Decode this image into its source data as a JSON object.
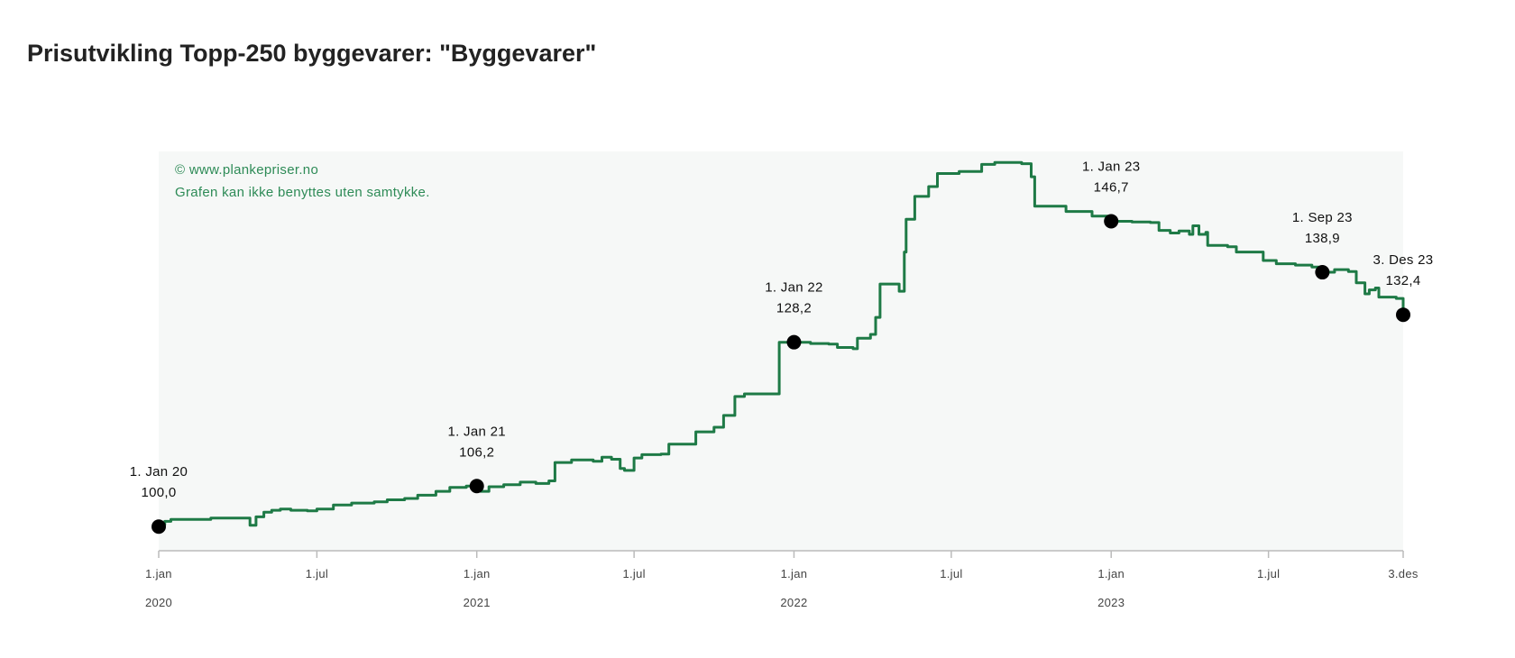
{
  "title": "Prisutvikling Topp-250 byggevarer: \"Byggevarer\"",
  "copyright": {
    "line1": "© www.plankepriser.no",
    "line2": "Grafen kan ikke benyttes uten samtykke."
  },
  "colors": {
    "line": "#1e7a46",
    "plot_background": "#f6f8f7",
    "marker": "#000000",
    "copyright_text": "#2e8b57",
    "axis": "#bbbbbb"
  },
  "chart_data": {
    "type": "line",
    "x_type": "date",
    "xlim": [
      "2020-01-01",
      "2023-12-03"
    ],
    "ylim": [
      97,
      156
    ],
    "grid": false,
    "legend": "none",
    "series": [
      {
        "points": [
          [
            "2020-01-01",
            100.0
          ],
          [
            "2020-01-04",
            100.3
          ],
          [
            "2020-01-08",
            100.8
          ],
          [
            "2020-01-15",
            101.1
          ],
          [
            "2020-02-01",
            101.1
          ],
          [
            "2020-03-01",
            101.3
          ],
          [
            "2020-04-10",
            101.3
          ],
          [
            "2020-04-15",
            100.2
          ],
          [
            "2020-04-22",
            101.5
          ],
          [
            "2020-05-01",
            102.2
          ],
          [
            "2020-05-10",
            102.5
          ],
          [
            "2020-05-20",
            102.7
          ],
          [
            "2020-06-01",
            102.5
          ],
          [
            "2020-06-20",
            102.4
          ],
          [
            "2020-07-01",
            102.7
          ],
          [
            "2020-07-20",
            103.3
          ],
          [
            "2020-08-10",
            103.6
          ],
          [
            "2020-09-05",
            103.8
          ],
          [
            "2020-09-20",
            104.1
          ],
          [
            "2020-10-10",
            104.3
          ],
          [
            "2020-10-25",
            104.8
          ],
          [
            "2020-11-15",
            105.4
          ],
          [
            "2020-12-01",
            106.0
          ],
          [
            "2020-12-20",
            106.2
          ],
          [
            "2021-01-01",
            106.2
          ],
          [
            "2021-01-05",
            105.4
          ],
          [
            "2021-01-15",
            106.1
          ],
          [
            "2021-02-01",
            106.4
          ],
          [
            "2021-02-20",
            106.8
          ],
          [
            "2021-03-10",
            106.6
          ],
          [
            "2021-03-25",
            107.0
          ],
          [
            "2021-04-01",
            109.8
          ],
          [
            "2021-04-20",
            110.2
          ],
          [
            "2021-05-15",
            110.0
          ],
          [
            "2021-05-25",
            110.6
          ],
          [
            "2021-06-05",
            110.3
          ],
          [
            "2021-06-15",
            108.9
          ],
          [
            "2021-06-20",
            108.6
          ],
          [
            "2021-07-01",
            110.5
          ],
          [
            "2021-07-10",
            111.0
          ],
          [
            "2021-08-01",
            111.1
          ],
          [
            "2021-08-10",
            112.6
          ],
          [
            "2021-09-01",
            112.6
          ],
          [
            "2021-09-10",
            114.5
          ],
          [
            "2021-10-01",
            115.2
          ],
          [
            "2021-10-12",
            117.0
          ],
          [
            "2021-10-25",
            119.9
          ],
          [
            "2021-11-05",
            120.3
          ],
          [
            "2021-12-15",
            128.2
          ],
          [
            "2022-01-01",
            128.2
          ],
          [
            "2022-01-20",
            128.0
          ],
          [
            "2022-02-10",
            127.9
          ],
          [
            "2022-02-20",
            127.4
          ],
          [
            "2022-03-10",
            127.2
          ],
          [
            "2022-03-15",
            128.8
          ],
          [
            "2022-03-30",
            129.4
          ],
          [
            "2022-04-05",
            132.0
          ],
          [
            "2022-04-10",
            137.1
          ],
          [
            "2022-04-25",
            137.1
          ],
          [
            "2022-05-02",
            136.0
          ],
          [
            "2022-05-08",
            142.0
          ],
          [
            "2022-05-10",
            147.0
          ],
          [
            "2022-05-20",
            150.5
          ],
          [
            "2022-06-05",
            152.0
          ],
          [
            "2022-06-15",
            154.0
          ],
          [
            "2022-07-10",
            154.3
          ],
          [
            "2022-08-05",
            155.4
          ],
          [
            "2022-08-20",
            155.7
          ],
          [
            "2022-09-20",
            155.5
          ],
          [
            "2022-10-01",
            153.5
          ],
          [
            "2022-10-05",
            149.0
          ],
          [
            "2022-10-10",
            149.0
          ],
          [
            "2022-11-10",
            148.2
          ],
          [
            "2022-12-10",
            147.5
          ],
          [
            "2023-01-01",
            146.7
          ],
          [
            "2023-01-25",
            146.6
          ],
          [
            "2023-02-15",
            146.5
          ],
          [
            "2023-02-25",
            145.3
          ],
          [
            "2023-03-10",
            144.9
          ],
          [
            "2023-03-20",
            145.2
          ],
          [
            "2023-04-01",
            144.7
          ],
          [
            "2023-04-05",
            146.0
          ],
          [
            "2023-04-12",
            144.7
          ],
          [
            "2023-04-20",
            145.0
          ],
          [
            "2023-04-22",
            143.0
          ],
          [
            "2023-05-15",
            142.8
          ],
          [
            "2023-05-25",
            142.0
          ],
          [
            "2023-06-25",
            140.7
          ],
          [
            "2023-07-10",
            140.2
          ],
          [
            "2023-08-01",
            140.0
          ],
          [
            "2023-08-20",
            139.7
          ],
          [
            "2023-09-01",
            138.9
          ],
          [
            "2023-09-15",
            139.3
          ],
          [
            "2023-10-01",
            139.0
          ],
          [
            "2023-10-10",
            137.3
          ],
          [
            "2023-10-20",
            135.6
          ],
          [
            "2023-10-25",
            136.2
          ],
          [
            "2023-11-01",
            136.5
          ],
          [
            "2023-11-05",
            135.1
          ],
          [
            "2023-11-25",
            134.9
          ],
          [
            "2023-12-03",
            132.4
          ]
        ]
      }
    ],
    "annotations": [
      {
        "x": "2020-01-01",
        "y": 100.0,
        "date_label": "1. Jan 20",
        "value_label": "100,0"
      },
      {
        "x": "2021-01-01",
        "y": 106.2,
        "date_label": "1. Jan 21",
        "value_label": "106,2"
      },
      {
        "x": "2022-01-01",
        "y": 128.2,
        "date_label": "1. Jan 22",
        "value_label": "128,2"
      },
      {
        "x": "2023-01-01",
        "y": 146.7,
        "date_label": "1. Jan 23",
        "value_label": "146,7"
      },
      {
        "x": "2023-09-01",
        "y": 138.9,
        "date_label": "1. Sep 23",
        "value_label": "138,9"
      },
      {
        "x": "2023-12-03",
        "y": 132.4,
        "date_label": "3. Des 23",
        "value_label": "132,4"
      }
    ],
    "x_ticks": [
      {
        "date": "2020-01-01",
        "label": "1.jan",
        "year": "2020"
      },
      {
        "date": "2020-07-01",
        "label": "1.jul",
        "year": ""
      },
      {
        "date": "2021-01-01",
        "label": "1.jan",
        "year": "2021"
      },
      {
        "date": "2021-07-01",
        "label": "1.jul",
        "year": ""
      },
      {
        "date": "2022-01-01",
        "label": "1.jan",
        "year": "2022"
      },
      {
        "date": "2022-07-01",
        "label": "1.jul",
        "year": ""
      },
      {
        "date": "2023-01-01",
        "label": "1.jan",
        "year": "2023"
      },
      {
        "date": "2023-07-01",
        "label": "1.jul",
        "year": ""
      },
      {
        "date": "2023-12-03",
        "label": "3.des",
        "year": ""
      }
    ]
  }
}
